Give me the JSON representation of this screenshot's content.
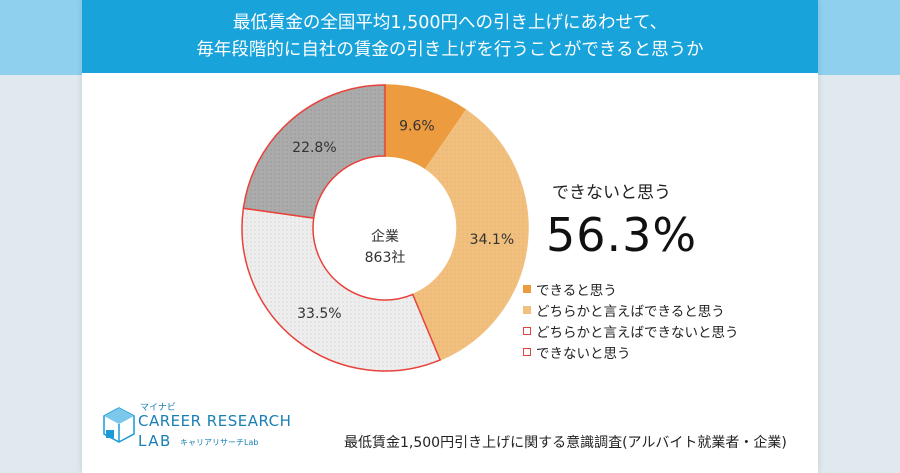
{
  "title": {
    "line1": "最低賃金の全国平均1,500円への引き上げにあわせて、",
    "line2": "毎年段階的に自社の賃金の引き上げを行うことができると思うか"
  },
  "chart_data": {
    "type": "pie",
    "donut": true,
    "center_label": [
      "企業",
      "863社"
    ],
    "categories": [
      "できると思う",
      "どちらかと言えばできると思う",
      "どちらかと言えばできないと思う",
      "できないと思う"
    ],
    "values": [
      9.6,
      34.1,
      33.5,
      22.8
    ],
    "labels": [
      "9.6%",
      "34.1%",
      "33.5%",
      "22.8%"
    ],
    "colors": [
      "#ec9b3f",
      "#f1c07f",
      "#eeeeee",
      "#b3b3b3"
    ],
    "stroke_colors": [
      "#ec9b3f",
      "#f1c07f",
      "#e8423b",
      "#e8423b"
    ],
    "legend_placement": "right"
  },
  "headline": {
    "label": "できないと思う",
    "value": "56.3%"
  },
  "logo": {
    "small": "マイナビ",
    "main": "CAREER RESEARCH",
    "lab": "LAB",
    "sub": "キャリアリサーチLab"
  },
  "source_note": "最低賃金1,500円引き上げに関する意識調査(アルバイト就業者・企業)"
}
